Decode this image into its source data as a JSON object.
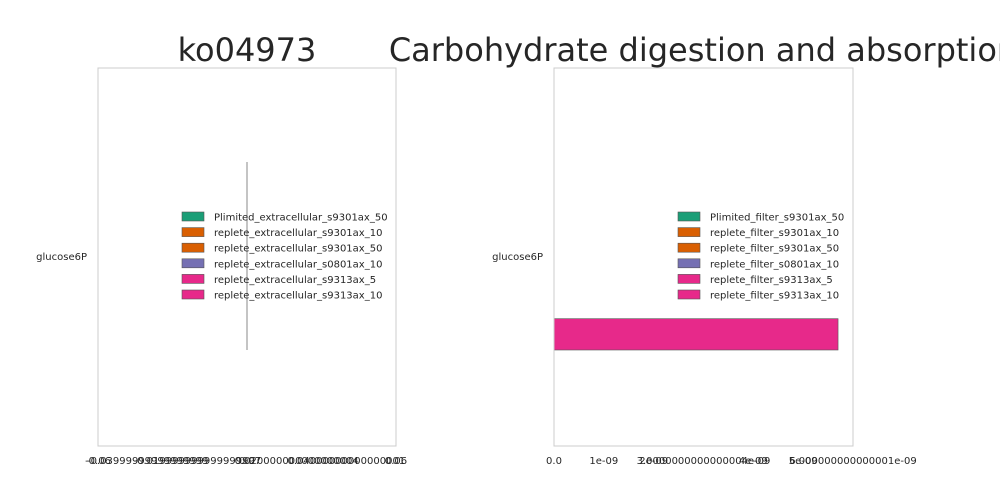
{
  "chart_data": [
    {
      "type": "bar",
      "orientation": "horizontal",
      "title": "ko04973",
      "categories": [
        "glucose6P"
      ],
      "series": [
        {
          "name": "Plimited_extracellular_s9301ax_50",
          "values": [
            0
          ],
          "color": "#1b9e77"
        },
        {
          "name": "replete_extracellular_s9301ax_10",
          "values": [
            0
          ],
          "color": "#d95f02"
        },
        {
          "name": "replete_extracellular_s9301ax_50",
          "values": [
            0
          ],
          "color": "#d95f02"
        },
        {
          "name": "replete_extracellular_s0801ax_10",
          "values": [
            0
          ],
          "color": "#7570b3"
        },
        {
          "name": "replete_extracellular_s9313ax_5",
          "values": [
            0
          ],
          "color": "#e7298a"
        },
        {
          "name": "replete_extracellular_s9313ax_10",
          "values": [
            0
          ],
          "color": "#e7298a"
        }
      ],
      "xlim": [
        -0.06,
        0.06
      ],
      "xticks": [
        -0.06,
        -0.04,
        -0.02,
        0.0,
        0.02,
        0.04,
        0.06
      ],
      "xtick_labels": [
        "-0.06",
        "-0.03999999999999999",
        "-0.019999999999999997",
        "0.0",
        "0.020000000000000004",
        "0.04000000000000001",
        "0.06"
      ],
      "grid": false,
      "legend_placement": "center"
    },
    {
      "type": "bar",
      "orientation": "horizontal",
      "title": "Carbohydrate digestion and absorption",
      "categories": [
        "glucose6P"
      ],
      "series": [
        {
          "name": "Plimited_filter_s9301ax_50",
          "values": [
            0
          ],
          "color": "#1b9e77"
        },
        {
          "name": "replete_filter_s9301ax_10",
          "values": [
            0
          ],
          "color": "#d95f02"
        },
        {
          "name": "replete_filter_s9301ax_50",
          "values": [
            0
          ],
          "color": "#d95f02"
        },
        {
          "name": "replete_filter_s0801ax_10",
          "values": [
            0
          ],
          "color": "#7570b3"
        },
        {
          "name": "replete_filter_s9313ax_5",
          "values": [
            0
          ],
          "color": "#e7298a"
        },
        {
          "name": "replete_filter_s9313ax_10",
          "values": [
            5.7e-09
          ],
          "color": "#e7298a"
        }
      ],
      "xlim": [
        0,
        6e-09
      ],
      "xticks": [
        0,
        1e-09,
        2e-09,
        3e-09,
        4e-09,
        5e-09,
        6e-09
      ],
      "xtick_labels": [
        "0.0",
        "1e-09",
        "2e-09",
        "3.0000000000000004e-09",
        "4e-09",
        "5e-09",
        "6.000000000000001e-09"
      ],
      "grid": false,
      "legend_placement": "center-right"
    }
  ]
}
